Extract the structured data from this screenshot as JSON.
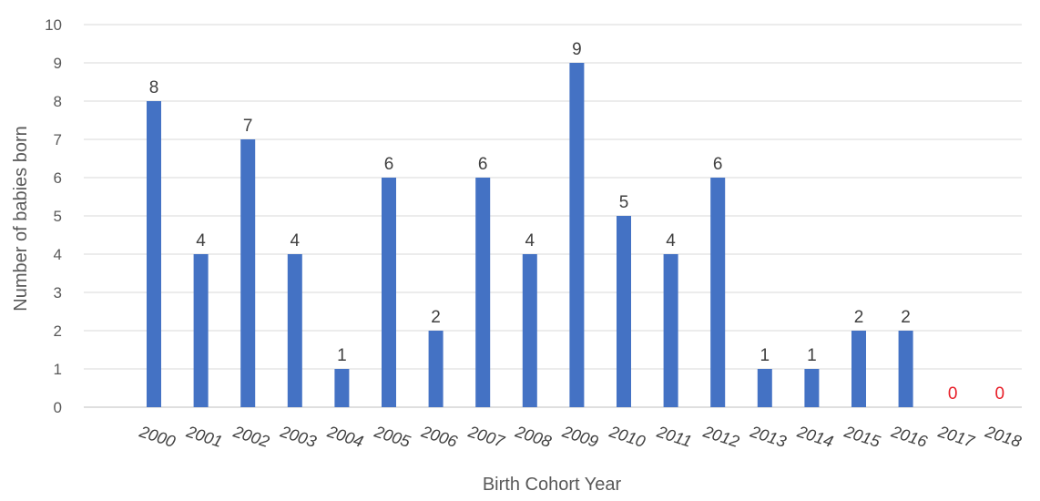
{
  "chart_data": {
    "type": "bar",
    "categories": [
      "2000",
      "2001",
      "2002",
      "2003",
      "2004",
      "2005",
      "2006",
      "2007",
      "2008",
      "2009",
      "2010",
      "2011",
      "2012",
      "2013",
      "2014",
      "2015",
      "2016",
      "2017",
      "2018"
    ],
    "series": [
      {
        "values": [
          8,
          4,
          7,
          4,
          1,
          6,
          2,
          6,
          4,
          9,
          5,
          4,
          6,
          1,
          1,
          2,
          2,
          0,
          0
        ]
      }
    ],
    "data_labels": [
      "8",
      "4",
      "7",
      "4",
      "1",
      "6",
      "2",
      "6",
      "4",
      "9",
      "5",
      "4",
      "6",
      "1",
      "1",
      "2",
      "2",
      "0",
      "0"
    ],
    "xlabel": "Birth Cohort Year",
    "ylabel": "Number of babies born",
    "ylim": [
      0,
      10
    ],
    "yticks": [
      0,
      1,
      2,
      3,
      4,
      5,
      6,
      7,
      8,
      9,
      10
    ],
    "grid": true,
    "legend": "none",
    "colors": {
      "bar": "#4472c4",
      "gridline": "#d9d9d9",
      "zero_label": "#e8202a"
    }
  }
}
